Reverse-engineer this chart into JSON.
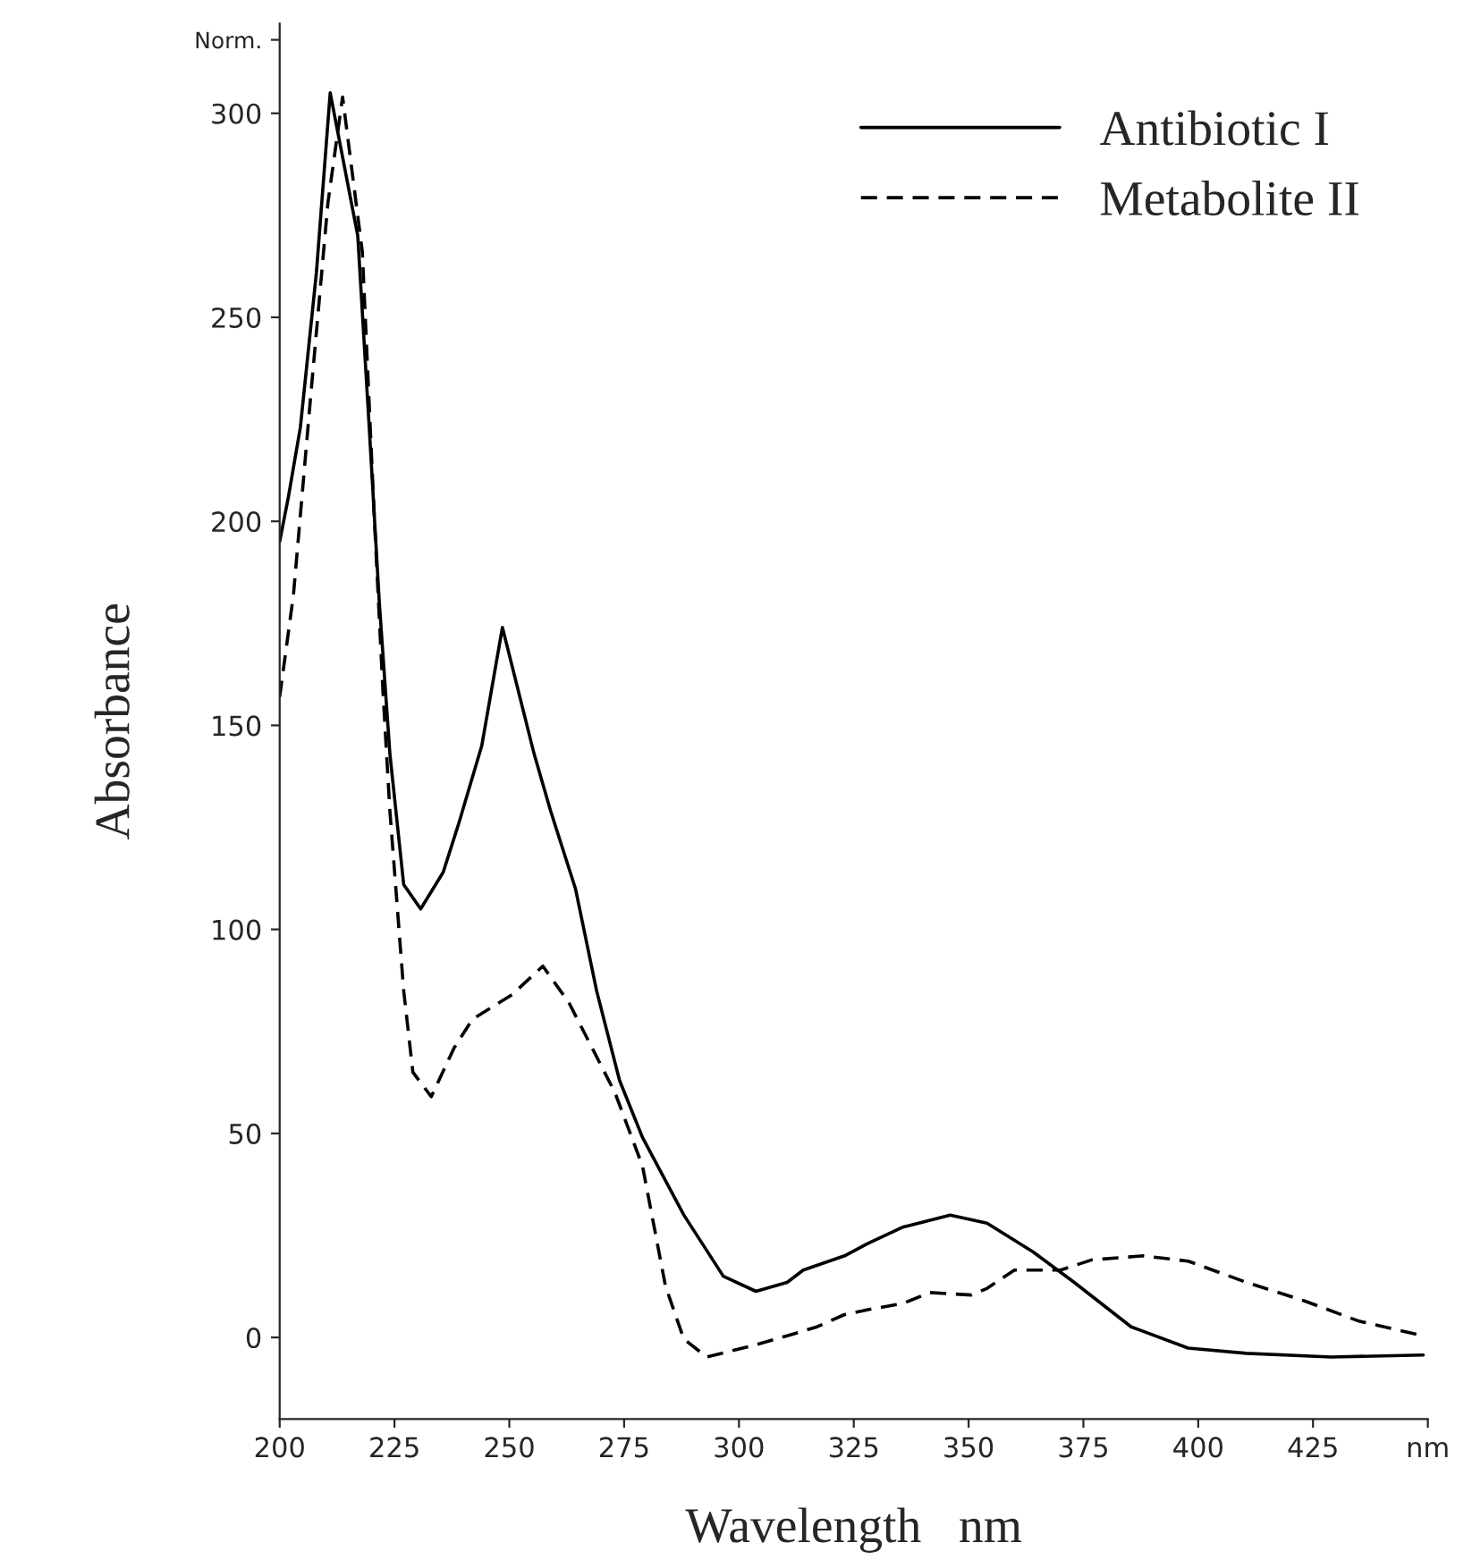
{
  "chart_data": {
    "type": "line",
    "xlabel": "Wavelength   nm",
    "ylabel": "Absorbance",
    "xlim": [
      200,
      450
    ],
    "ylim": [
      -20,
      322
    ],
    "xticks": [
      200,
      225,
      250,
      275,
      300,
      325,
      350,
      375,
      400,
      425,
      {
        "value": 450,
        "label": "nm"
      }
    ],
    "yticks": [
      0,
      50,
      100,
      150,
      200,
      250,
      300,
      {
        "value": 318,
        "label": "Norm."
      }
    ],
    "grid": false,
    "legend": "top right",
    "marker": "none",
    "series": [
      {
        "name": "Antibiotic I",
        "color": "#000000",
        "line_style": "solid",
        "x": [
          200,
          201.9,
          204.5,
          208,
          211,
          217,
          219.5,
          221.7,
          224,
          227,
          230.7,
          235.6,
          239,
          244,
          248.5,
          255.4,
          259,
          264.4,
          269,
          274,
          279,
          288,
          296.6,
          303.7,
          310.5,
          314,
          323,
          328,
          335.6,
          346,
          354,
          364,
          373,
          385.4,
          397.8,
          410.5,
          429,
          449
        ],
        "values": [
          195,
          206,
          223,
          261,
          305,
          270,
          223,
          180,
          143,
          111,
          105,
          114,
          126,
          145,
          174,
          143,
          129,
          110,
          85,
          63,
          49,
          30,
          15,
          11.3,
          13.5,
          16.5,
          20,
          23,
          27,
          30,
          28,
          21,
          13.5,
          2.6,
          -2.6,
          -3.9,
          -4.8,
          -4.3
        ]
      },
      {
        "name": "Metabolite II",
        "color": "#000000",
        "line_style": "dashed",
        "x": [
          200,
          203,
          206.7,
          210.5,
          213.7,
          218,
          220.6,
          222.5,
          224,
          227,
          229,
          233,
          238,
          242,
          250.6,
          257.3,
          263,
          268,
          273,
          279,
          284,
          288,
          293,
          304,
          310.5,
          317,
          323,
          329,
          335.6,
          341.6,
          350.6,
          354,
          360,
          370,
          376.8,
          388,
          397.8,
          410.5,
          423,
          435,
          449
        ],
        "values": [
          157,
          182,
          230,
          278,
          304,
          266,
          201,
          158,
          129,
          85,
          65,
          59,
          71,
          78,
          84,
          91,
          82,
          71,
          60,
          42,
          12.6,
          -0.4,
          -4.8,
          -1.7,
          0.4,
          2.6,
          5.6,
          7,
          8.3,
          11,
          10.4,
          12,
          16.5,
          16.5,
          19,
          20,
          18.7,
          13.5,
          9,
          4,
          0.4
        ]
      }
    ]
  }
}
